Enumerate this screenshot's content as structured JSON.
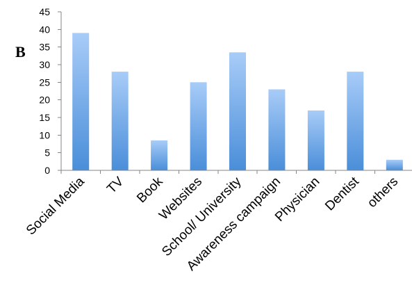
{
  "panel_label": "B",
  "colors": {
    "bar_top": "#a8ccf8",
    "bar_bottom": "#4a8ed9",
    "axis": "#868686"
  },
  "chart_data": {
    "type": "bar",
    "title": "",
    "xlabel": "",
    "ylabel": "",
    "categories": [
      "Social Media",
      "TV",
      "Book",
      "Websites",
      "School/ University",
      "Awareness campaign",
      "Physician",
      "Dentist",
      "others"
    ],
    "values": [
      39,
      28,
      8.5,
      25,
      33.5,
      23,
      17,
      28,
      3
    ],
    "ylim": [
      0,
      45
    ],
    "yticks": [
      "0",
      "5",
      "10",
      "15",
      "20",
      "25",
      "30",
      "35",
      "40",
      "45"
    ],
    "grid": false,
    "legend": "none"
  }
}
